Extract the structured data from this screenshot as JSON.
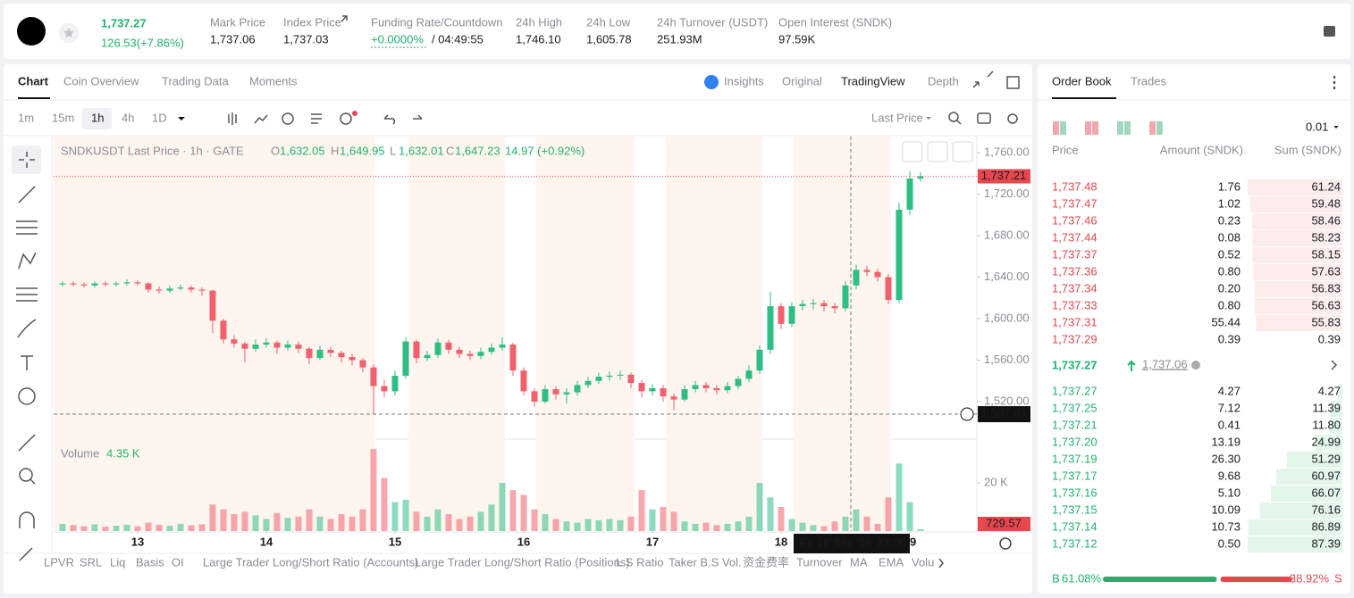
{
  "header": {
    "price": "1,737.27",
    "change": "126.53(+7.86%)",
    "stats": [
      {
        "label": "Mark Price",
        "value": "1,737.06"
      },
      {
        "label": "Index Price",
        "value": "1,737.03"
      },
      {
        "label": "Funding Rate/Countdown",
        "value": "+0.0000%",
        "countdown": "/ 04:49:55"
      },
      {
        "label": "24h High",
        "value": "1,746.10"
      },
      {
        "label": "24h Low",
        "value": "1,605.78"
      },
      {
        "label": "24h Turnover (USDT)",
        "value": "251.93M"
      },
      {
        "label": "Open Interest (SNDK)",
        "value": "97.59K"
      }
    ]
  },
  "tabs": {
    "left": [
      "Chart",
      "Coin Overview",
      "Trading Data",
      "Moments"
    ],
    "right": [
      "Insights",
      "Original",
      "TradingView",
      "Depth"
    ]
  },
  "toolbar": {
    "intervals": [
      "1m",
      "15m",
      "1h",
      "4h",
      "1D"
    ],
    "price_type": "Last Price"
  },
  "legend": {
    "symbol": "SNDKUSDT Last Price · 1h · GATE",
    "ohlc": [
      {
        "key": "O",
        "value": "1,632.05"
      },
      {
        "key": "H",
        "value": "1,649.95"
      },
      {
        "key": "L",
        "value": "1,632.01"
      },
      {
        "key": "C",
        "value": "1,647.23"
      }
    ],
    "change": "14.97 (+0.92%)",
    "volume_title": "Volume",
    "volume_value": "4.35 K"
  },
  "chart_data": {
    "type": "candlestick",
    "up_color": "#2ebd85",
    "down_color": "#f0616d",
    "xlim": [
      -0.83,
      85.25
    ],
    "ylim": [
      1485.6,
      1775.5
    ],
    "yticks": [
      {
        "value": 1760,
        "label": "1,760.00"
      },
      {
        "value": 1720,
        "label": "1,720.00"
      },
      {
        "value": 1680,
        "label": "1,680.00"
      },
      {
        "value": 1640,
        "label": "1,640.00"
      },
      {
        "value": 1600,
        "label": "1,600.00"
      },
      {
        "value": 1560,
        "label": "1,560.00"
      },
      {
        "value": 1520,
        "label": "1,520.00"
      }
    ],
    "xticks": [
      {
        "value": 7,
        "label": "13"
      },
      {
        "value": 19,
        "label": "14"
      },
      {
        "value": 31,
        "label": "15"
      },
      {
        "value": 43,
        "label": "16"
      },
      {
        "value": 55,
        "label": "17"
      },
      {
        "value": 67,
        "label": "18"
      },
      {
        "value": 79,
        "label": "19"
      }
    ],
    "volume_ylim": [
      0,
      40000
    ],
    "volume_yticks": [
      {
        "value": 20000,
        "label": "20 K"
      }
    ],
    "candles": [
      [
        1633,
        1636,
        1631,
        1634
      ],
      [
        1634,
        1636,
        1631,
        1633
      ],
      [
        1633,
        1635,
        1630,
        1632
      ],
      [
        1632,
        1636,
        1630,
        1634
      ],
      [
        1634,
        1636,
        1631,
        1633
      ],
      [
        1633,
        1636,
        1631,
        1634
      ],
      [
        1634,
        1638,
        1632,
        1635
      ],
      [
        1635,
        1637,
        1632,
        1634
      ],
      [
        1634,
        1635,
        1625,
        1628
      ],
      [
        1628,
        1631,
        1624,
        1627
      ],
      [
        1627,
        1632,
        1625,
        1629
      ],
      [
        1629,
        1633,
        1627,
        1630
      ],
      [
        1630,
        1632,
        1625,
        1628
      ],
      [
        1628,
        1630,
        1622,
        1627
      ],
      [
        1627,
        1628,
        1586,
        1598
      ],
      [
        1598,
        1600,
        1576,
        1580
      ],
      [
        1580,
        1584,
        1572,
        1576
      ],
      [
        1576,
        1578,
        1558,
        1571
      ],
      [
        1571,
        1580,
        1568,
        1575
      ],
      [
        1575,
        1581,
        1572,
        1577
      ],
      [
        1577,
        1579,
        1566,
        1572
      ],
      [
        1572,
        1579,
        1569,
        1575
      ],
      [
        1575,
        1578,
        1567,
        1571
      ],
      [
        1571,
        1573,
        1556,
        1562
      ],
      [
        1562,
        1574,
        1560,
        1570
      ],
      [
        1570,
        1573,
        1563,
        1567
      ],
      [
        1567,
        1569,
        1558,
        1563
      ],
      [
        1563,
        1566,
        1555,
        1560
      ],
      [
        1560,
        1562,
        1548,
        1553
      ],
      [
        1553,
        1556,
        1508,
        1535
      ],
      [
        1535,
        1541,
        1524,
        1530
      ],
      [
        1530,
        1550,
        1526,
        1545
      ],
      [
        1545,
        1582,
        1542,
        1578
      ],
      [
        1578,
        1580,
        1557,
        1562
      ],
      [
        1562,
        1569,
        1559,
        1565
      ],
      [
        1565,
        1581,
        1562,
        1577
      ],
      [
        1577,
        1580,
        1566,
        1570
      ],
      [
        1570,
        1573,
        1562,
        1566
      ],
      [
        1566,
        1569,
        1560,
        1564
      ],
      [
        1564,
        1572,
        1561,
        1568
      ],
      [
        1568,
        1576,
        1565,
        1572
      ],
      [
        1572,
        1582,
        1569,
        1575
      ],
      [
        1575,
        1577,
        1545,
        1550
      ],
      [
        1550,
        1553,
        1526,
        1530
      ],
      [
        1530,
        1533,
        1515,
        1520
      ],
      [
        1520,
        1536,
        1518,
        1532
      ],
      [
        1532,
        1535,
        1522,
        1527
      ],
      [
        1527,
        1533,
        1518,
        1529
      ],
      [
        1529,
        1540,
        1526,
        1536
      ],
      [
        1536,
        1544,
        1533,
        1540
      ],
      [
        1540,
        1548,
        1537,
        1544
      ],
      [
        1544,
        1549,
        1540,
        1545
      ],
      [
        1545,
        1550,
        1541,
        1546
      ],
      [
        1546,
        1548,
        1533,
        1538
      ],
      [
        1538,
        1541,
        1524,
        1530
      ],
      [
        1530,
        1537,
        1526,
        1533
      ],
      [
        1533,
        1536,
        1520,
        1525
      ],
      [
        1525,
        1528,
        1512,
        1522
      ],
      [
        1522,
        1536,
        1520,
        1532
      ],
      [
        1532,
        1540,
        1529,
        1536
      ],
      [
        1536,
        1539,
        1529,
        1533
      ],
      [
        1533,
        1536,
        1527,
        1531
      ],
      [
        1531,
        1539,
        1528,
        1535
      ],
      [
        1535,
        1545,
        1532,
        1542
      ],
      [
        1542,
        1555,
        1539,
        1550
      ],
      [
        1550,
        1574,
        1547,
        1570
      ],
      [
        1570,
        1626,
        1566,
        1612
      ],
      [
        1612,
        1615,
        1590,
        1595
      ],
      [
        1595,
        1616,
        1592,
        1612
      ],
      [
        1612,
        1618,
        1608,
        1614
      ],
      [
        1614,
        1619,
        1609,
        1615
      ],
      [
        1615,
        1618,
        1607,
        1612
      ],
      [
        1612,
        1615,
        1605,
        1610
      ],
      [
        1610,
        1636,
        1607,
        1632
      ],
      [
        1632,
        1652,
        1628,
        1647
      ],
      [
        1647,
        1651,
        1641,
        1645
      ],
      [
        1645,
        1648,
        1636,
        1640
      ],
      [
        1640,
        1643,
        1614,
        1618
      ],
      [
        1618,
        1712,
        1615,
        1705
      ],
      [
        1705,
        1742,
        1700,
        1735
      ],
      [
        1735,
        1741,
        1732,
        1737.21
      ]
    ],
    "volumes": [
      3000,
      2500,
      2000,
      2800,
      1800,
      2200,
      2600,
      2000,
      3500,
      2600,
      2200,
      3000,
      2400,
      2800,
      11000,
      9000,
      7000,
      8000,
      6500,
      5000,
      7500,
      5500,
      6000,
      9000,
      6000,
      5000,
      7000,
      6000,
      9000,
      34000,
      22000,
      12000,
      13000,
      8000,
      6000,
      9000,
      7000,
      5000,
      6000,
      8000,
      11000,
      20000,
      17000,
      15000,
      9000,
      7000,
      5000,
      4000,
      3500,
      5000,
      4500,
      5000,
      4500,
      6000,
      17000,
      9000,
      10000,
      8000,
      4000,
      3000,
      3500,
      2500,
      3000,
      4000,
      6000,
      20000,
      14000,
      10000,
      5000,
      3500,
      2500,
      2000,
      4000,
      6000,
      9000,
      6000,
      3000,
      14000,
      28000,
      12000,
      729.57
    ],
    "volume_value_labels": {
      "80": "729.57"
    },
    "last_price": {
      "value": 1737.21,
      "label": "1,737.21"
    },
    "crosshair": {
      "price": {
        "value": 1507.93,
        "label": "1,507.93"
      },
      "date": "Fri 18 Sep '26",
      "time": "13:00"
    }
  },
  "indicators": [
    "LPVR",
    "SRL",
    "Liq",
    "Basis",
    "OI",
    "Large Trader Long/Short Ratio (Accounts)",
    "Large Trader Long/Short Ratio (Positions)",
    "L.S Ratio",
    "Taker B.S Vol.",
    "资金费率",
    "Turnover",
    "MA",
    "EMA",
    "Volu"
  ],
  "order_book": {
    "tabs": [
      "Order Book",
      "Trades"
    ],
    "precision": "0.01",
    "columns": [
      "Price",
      "Amount (SNDK)",
      "Sum (SNDK)"
    ],
    "asks": [
      {
        "price": "1,737.48",
        "amount": "1.76",
        "sum": "61.24"
      },
      {
        "price": "1,737.47",
        "amount": "1.02",
        "sum": "59.48"
      },
      {
        "price": "1,737.46",
        "amount": "0.23",
        "sum": "58.46"
      },
      {
        "price": "1,737.44",
        "amount": "0.08",
        "sum": "58.23"
      },
      {
        "price": "1,737.37",
        "amount": "0.52",
        "sum": "58.15"
      },
      {
        "price": "1,737.36",
        "amount": "0.80",
        "sum": "57.63"
      },
      {
        "price": "1,737.34",
        "amount": "0.20",
        "sum": "56.83"
      },
      {
        "price": "1,737.33",
        "amount": "0.80",
        "sum": "56.63"
      },
      {
        "price": "1,737.31",
        "amount": "55.44",
        "sum": "55.83"
      },
      {
        "price": "1,737.29",
        "amount": "0.39",
        "sum": "0.39"
      }
    ],
    "mid_price": "1,737.27",
    "mark_price": "1,737.06",
    "bids": [
      {
        "price": "1,737.27",
        "amount": "4.27",
        "sum": "4.27"
      },
      {
        "price": "1,737.25",
        "amount": "7.12",
        "sum": "11.39"
      },
      {
        "price": "1,737.21",
        "amount": "0.41",
        "sum": "11.80"
      },
      {
        "price": "1,737.20",
        "amount": "13.19",
        "sum": "24.99"
      },
      {
        "price": "1,737.19",
        "amount": "26.30",
        "sum": "51.29"
      },
      {
        "price": "1,737.17",
        "amount": "9.68",
        "sum": "60.97"
      },
      {
        "price": "1,737.16",
        "amount": "5.10",
        "sum": "66.07"
      },
      {
        "price": "1,737.15",
        "amount": "10.09",
        "sum": "76.16"
      },
      {
        "price": "1,737.14",
        "amount": "10.73",
        "sum": "86.89"
      },
      {
        "price": "1,737.12",
        "amount": "0.50",
        "sum": "87.39"
      }
    ],
    "buy_letter": "B",
    "buy_ratio": "61.08%",
    "sell_ratio": "38.92%",
    "sell_letter": "S"
  }
}
